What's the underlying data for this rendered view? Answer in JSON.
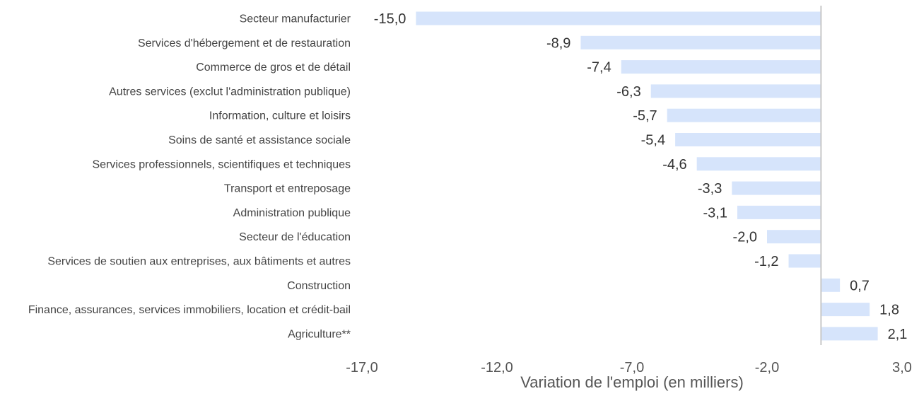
{
  "chart_data": {
    "type": "bar",
    "orientation": "horizontal",
    "categories": [
      "Secteur manufacturier",
      "Services d'hébergement et de restauration",
      "Commerce de gros et de détail",
      "Autres services (exclut l'administration publique)",
      "Information, culture et loisirs",
      "Soins de santé et assistance sociale",
      "Services professionnels, scientifiques et techniques",
      "Transport et entreposage",
      "Administration publique",
      "Secteur de l'éducation",
      "Services de soutien aux entreprises, aux bâtiments et autres",
      "Construction",
      "Finance, assurances, services immobiliers, location et crédit-bail",
      "Agriculture**"
    ],
    "values": [
      -15.0,
      -8.9,
      -7.4,
      -6.3,
      -5.7,
      -5.4,
      -4.6,
      -3.3,
      -3.1,
      -2.0,
      -1.2,
      0.7,
      1.8,
      2.1
    ],
    "value_labels": [
      "-15,0",
      "-8,9",
      "-7,4",
      "-6,3",
      "-5,7",
      "-5,4",
      "-4,6",
      "-3,3",
      "-3,1",
      "-2,0",
      "-1,2",
      "0,7",
      "1,8",
      "2,1"
    ],
    "xlim": [
      -17.0,
      3.0
    ],
    "xticks": [
      -17.0,
      -12.0,
      -7.0,
      -2.0,
      3.0
    ],
    "xtick_labels": [
      "-17,0",
      "-12,0",
      "-7,0",
      "-2,0",
      "3,0"
    ],
    "xlabel": "Variation de l'emploi (en milliers)",
    "ylabel": "",
    "title": "",
    "grid": false,
    "legend": false,
    "bar_color": "#d6e4fb",
    "axis_line_color": "#c8c8c8"
  }
}
